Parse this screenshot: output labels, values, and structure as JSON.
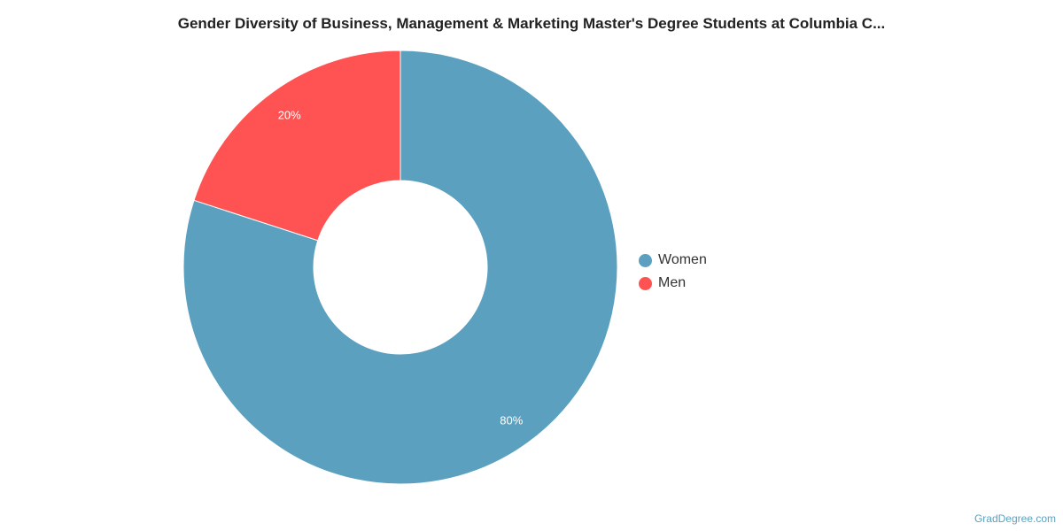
{
  "chart_data": {
    "type": "pie",
    "donut": true,
    "title": "Gender Diversity of Business, Management & Marketing Master's Degree Students at Columbia C...",
    "categories": [
      "Women",
      "Men"
    ],
    "values": [
      80,
      20
    ],
    "labels": [
      "80%",
      "20%"
    ],
    "colors": [
      "#5ba1bf",
      "#fe5352"
    ],
    "legend": "right"
  },
  "credit": "GradDegree.com"
}
